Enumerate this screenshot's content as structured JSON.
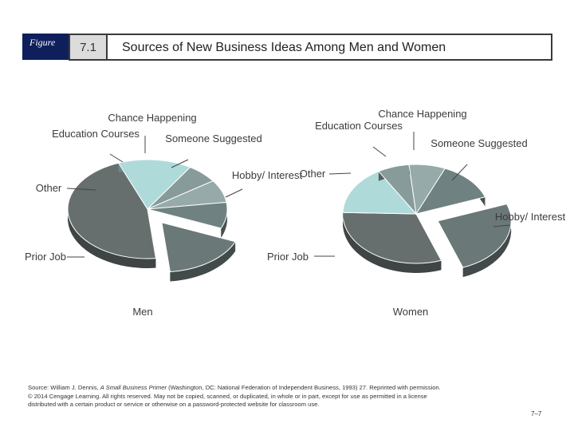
{
  "figure": {
    "tag": "Figure",
    "number": "7.1",
    "title": "Sources of New Business Ideas Among Men and Women"
  },
  "chart_data": [
    {
      "type": "pie",
      "title": "Men",
      "slices": [
        {
          "label": "Prior Job",
          "value": 43,
          "color": "#666f6e",
          "exploded": false
        },
        {
          "label": "Other",
          "value": 14,
          "color": "#afdada",
          "exploded": false
        },
        {
          "label": "Education Courses",
          "value": 6,
          "color": "#879b9a",
          "exploded": false
        },
        {
          "label": "Chance Happening",
          "value": 7,
          "color": "#96aaa9",
          "exploded": false
        },
        {
          "label": "Someone Suggested",
          "value": 8,
          "color": "#6f8281",
          "exploded": false
        },
        {
          "label": "Hobby/ Interest",
          "value": 16,
          "color": "#6a7877",
          "exploded": true
        }
      ]
    },
    {
      "type": "pie",
      "title": "Women",
      "slices": [
        {
          "label": "Prior Job",
          "value": 31,
          "color": "#666f6e",
          "exploded": false
        },
        {
          "label": "Other",
          "value": 16,
          "color": "#afdada",
          "exploded": false
        },
        {
          "label": "Education Courses",
          "value": 7,
          "color": "#879b9a",
          "exploded": false
        },
        {
          "label": "Chance Happening",
          "value": 8,
          "color": "#96aaa9",
          "exploded": false
        },
        {
          "label": "Someone Suggested",
          "value": 13,
          "color": "#6f8281",
          "exploded": false
        },
        {
          "label": "Hobby/ Interest",
          "value": 25,
          "color": "#6a7877",
          "exploded": true
        }
      ]
    }
  ],
  "footer": {
    "source_prefix": "Source: William J. Dennis, ",
    "source_book": "A Small Business Primer",
    "source_suffix": " (Washington, DC: National Federation of Independent Business, 1993) 27. Reprinted with permission.",
    "copyright": "© 2014 Cengage Learning. All rights reserved. May not be copied, scanned, or duplicated, in whole or in part, except for use as permitted in a license distributed with a certain product or service or otherwise on a password-protected website for classroom use.",
    "page_number": "7–7"
  }
}
